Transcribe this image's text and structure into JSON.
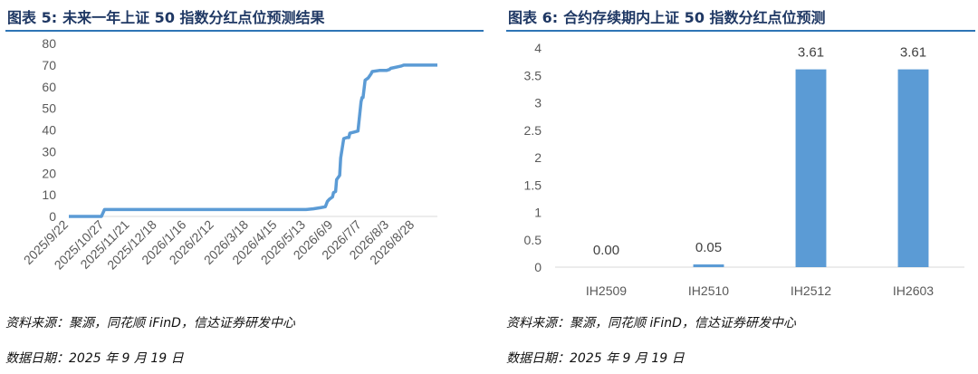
{
  "left": {
    "title_label": "图表 5:",
    "title_text": "未来一年上证 50 指数分红点位预测结果",
    "source": "资料来源：聚源，同花顺 iFinD，信达证券研发中心",
    "date": "数据日期：2025 年 9 月 19 日"
  },
  "right": {
    "title_label": "图表 6:",
    "title_text": "合约存续期内上证 50 指数分红点位预测",
    "source": "资料来源：聚源，同花顺 iFinD，信达证券研发中心",
    "date": "数据日期：2025 年 9 月 19 日"
  },
  "colors": {
    "series": "#5b9bd5",
    "title": "#1f3864",
    "rule": "#2e75b6",
    "axis": "#d9d9d9"
  },
  "chart_data": [
    {
      "type": "line",
      "title": "未来一年上证 50 指数分红点位预测结果",
      "ylim": [
        0,
        80
      ],
      "yticks": [
        0,
        10,
        20,
        30,
        40,
        50,
        60,
        70,
        80
      ],
      "xlim": [
        "2025/9/22",
        "2026/9/19"
      ],
      "xticks": [
        "2025/9/22",
        "2025/10/27",
        "2025/11/21",
        "2025/12/18",
        "2026/1/16",
        "2026/2/12",
        "2026/3/18",
        "2026/4/15",
        "2026/5/13",
        "2026/6/9",
        "2026/7/7",
        "2026/8/3",
        "2026/8/28"
      ],
      "grid": false,
      "legend": "none",
      "series": [
        {
          "x": [
            "2025/9/22",
            "2025/10/24",
            "2025/10/27",
            "2026/5/13",
            "2026/5/20",
            "2026/5/27",
            "2026/6/1",
            "2026/6/3",
            "2026/6/5",
            "2026/6/8",
            "2026/6/9",
            "2026/6/11",
            "2026/6/12",
            "2026/6/15",
            "2026/6/16",
            "2026/6/19",
            "2026/6/22",
            "2026/6/24",
            "2026/6/25",
            "2026/6/29",
            "2026/7/3",
            "2026/7/6",
            "2026/7/7",
            "2026/7/8",
            "2026/7/10",
            "2026/7/13",
            "2026/7/16",
            "2026/7/17",
            "2026/7/24",
            "2026/7/31",
            "2026/8/3",
            "2026/8/4",
            "2026/8/14",
            "2026/8/17",
            "2026/9/19"
          ],
          "values": [
            0,
            0,
            3.2,
            3.2,
            3.5,
            4,
            4.5,
            7,
            8,
            9,
            11,
            11.5,
            17,
            19,
            27,
            36,
            36.5,
            36.5,
            38.5,
            39,
            39.5,
            53,
            55,
            55,
            63,
            64,
            66,
            67,
            67.5,
            67.5,
            68,
            68.5,
            69.5,
            70,
            70
          ]
        }
      ]
    },
    {
      "type": "bar",
      "title": "合约存续期内上证 50 指数分红点位预测",
      "categories": [
        "IH2509",
        "IH2510",
        "IH2512",
        "IH2603"
      ],
      "values": [
        0.0,
        0.05,
        3.61,
        3.61
      ],
      "data_labels": [
        "0.00",
        "0.05",
        "3.61",
        "3.61"
      ],
      "ylim": [
        0,
        4
      ],
      "yticks": [
        "0",
        "0.5",
        "1",
        "1.5",
        "2",
        "2.5",
        "3",
        "3.5",
        "4"
      ],
      "grid": false,
      "legend": "none"
    }
  ]
}
